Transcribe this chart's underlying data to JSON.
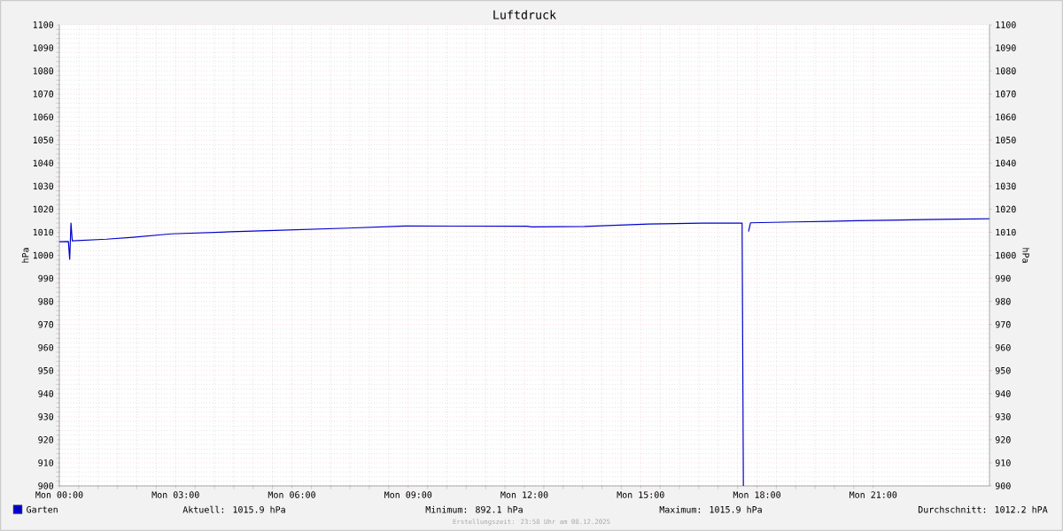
{
  "chart_data": {
    "type": "line",
    "title": "Luftdruck",
    "ylabel": "hPa",
    "y2label": "hPa",
    "x": [
      "2025-12-08T00:00",
      "2025-12-08T00:14",
      "2025-12-08T00:16",
      "2025-12-08T00:18",
      "2025-12-08T00:20",
      "2025-12-08T01:13",
      "2025-12-08T01:54",
      "2025-12-08T02:53",
      "2025-12-08T04:25",
      "2025-12-08T05:33",
      "2025-12-08T07:27",
      "2025-12-08T08:55",
      "2025-12-08T12:04",
      "2025-12-08T12:11",
      "2025-12-08T13:33",
      "2025-12-08T15:13",
      "2025-12-08T16:35",
      "2025-12-08T17:37",
      "2025-12-08T17:39",
      "2025-12-08T17:40",
      "2025-12-08T17:45",
      "2025-12-08T17:47",
      "2025-12-08T17:50",
      "2025-12-08T18:58",
      "2025-12-08T19:50",
      "2025-12-08T20:34",
      "2025-12-08T22:19",
      "2025-12-09T00:00"
    ],
    "series": [
      {
        "name": "Garten",
        "color": "#0000cc",
        "values": [
          1005.9,
          1006.0,
          998.3,
          1014,
          1006.3,
          1007.0,
          1007.8,
          1009.3,
          1010.2,
          1010.8,
          1011.8,
          1012.7,
          1012.6,
          1012.3,
          1012.5,
          1013.6,
          1014.0,
          1014.0,
          900,
          900,
          null,
          1010.3,
          1014.1,
          1014.5,
          1014.7,
          1015.0,
          1015.5,
          1015.9
        ]
      }
    ],
    "xlim": [
      "2025-12-08T00:00",
      "2025-12-09T00:00"
    ],
    "xticks": [
      {
        "value": "2025-12-08T00:00",
        "label": "Mon 00:00"
      },
      {
        "value": "2025-12-08T03:00",
        "label": "Mon 03:00"
      },
      {
        "value": "2025-12-08T06:00",
        "label": "Mon 06:00"
      },
      {
        "value": "2025-12-08T09:00",
        "label": "Mon 09:00"
      },
      {
        "value": "2025-12-08T12:00",
        "label": "Mon 12:00"
      },
      {
        "value": "2025-12-08T15:00",
        "label": "Mon 15:00"
      },
      {
        "value": "2025-12-08T18:00",
        "label": "Mon 18:00"
      },
      {
        "value": "2025-12-08T21:00",
        "label": "Mon 21:00"
      }
    ],
    "ylim": [
      900,
      1100
    ],
    "yticks": [
      900,
      910,
      920,
      930,
      940,
      950,
      960,
      970,
      980,
      990,
      1000,
      1010,
      1020,
      1030,
      1040,
      1050,
      1060,
      1070,
      1080,
      1090,
      1100
    ],
    "y2lim": [
      900,
      1100
    ],
    "y2ticks": [
      900,
      910,
      920,
      930,
      940,
      950,
      960,
      970,
      980,
      990,
      1000,
      1010,
      1020,
      1030,
      1040,
      1050,
      1060,
      1070,
      1080,
      1090,
      1100
    ],
    "grid": true,
    "legend": "bottom",
    "annotations": [
      "Aktuell: 1015.9 hPa",
      "Minimum: 892.1 hPa",
      "Maximum: 1015.9 hPa",
      "Durchschnitt: 1012.2 hPA",
      "Erstellungszeit: 23:58 Uhr am 08.12.2025"
    ]
  }
}
